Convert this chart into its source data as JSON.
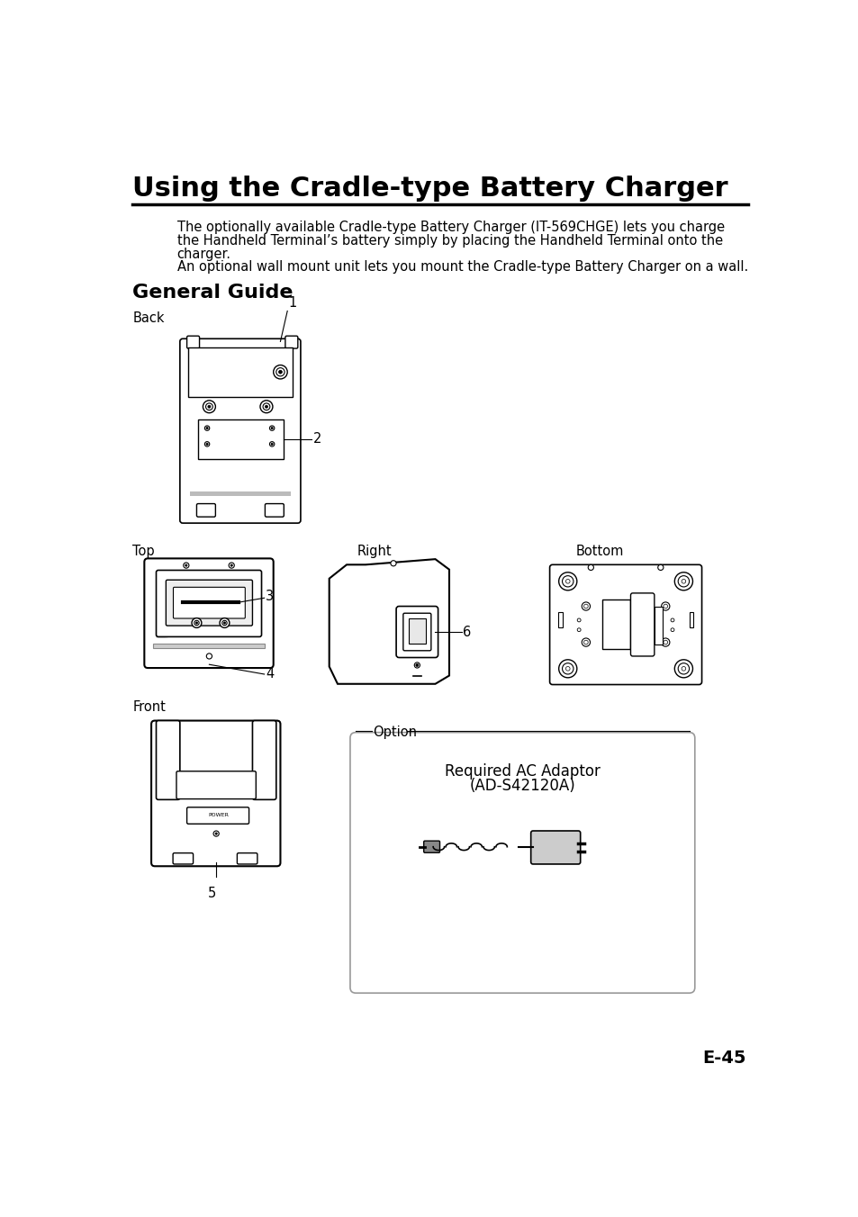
{
  "title": "Using the Cradle-type Battery Charger",
  "body_text_1": "The optionally available Cradle-type Battery Charger (IT-569CHGE) lets you charge",
  "body_text_2": "the Handheld Terminal’s battery simply by placing the Handheld Terminal onto the",
  "body_text_3": "charger.",
  "body_text_4": "An optional wall mount unit lets you mount the Cradle-type Battery Charger on a wall.",
  "section_title": "General Guide",
  "page_number": "E-45",
  "bg_color": "#ffffff",
  "text_color": "#000000"
}
